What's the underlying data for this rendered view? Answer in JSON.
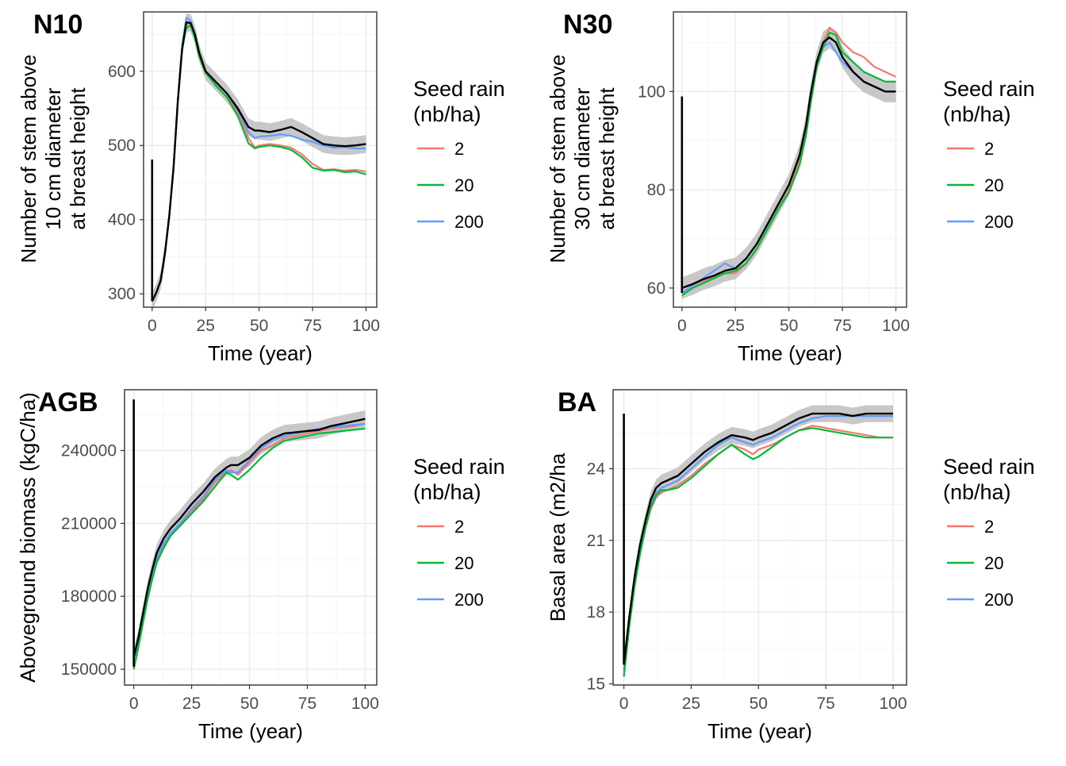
{
  "colors": {
    "s2": "#F8766D",
    "s20": "#00BA38",
    "s200": "#619CFF",
    "mean": "#000000",
    "band": "#BEBEBE"
  },
  "legend": {
    "title_line1": "Seed rain",
    "title_line2": "(nb/ha)",
    "labels": [
      "2",
      "20",
      "200"
    ]
  },
  "chart_data": [
    {
      "type": "line",
      "tag": "N10",
      "title": "N10",
      "ylabel_lines": [
        "Number of stem above",
        "10 cm diameter",
        "at breast height"
      ],
      "xlabel": "Time (year)",
      "xlim": [
        -4,
        105
      ],
      "ylim": [
        282,
        680
      ],
      "xticks": [
        0,
        25,
        50,
        75,
        100
      ],
      "yticks": [
        300,
        400,
        500,
        600
      ],
      "xtick_labels": [
        "0",
        "25",
        "50",
        "75",
        "100"
      ],
      "ytick_labels": [
        "300",
        "400",
        "500",
        "600"
      ],
      "spike": {
        "x": 0,
        "from": 290,
        "to": 481
      },
      "band_halfwidth": 12,
      "series": [
        {
          "name": "2",
          "key": "s2",
          "x": [
            0,
            2,
            4,
            6,
            8,
            10,
            12,
            14,
            16,
            18,
            20,
            22,
            25,
            30,
            35,
            40,
            45,
            48,
            50,
            55,
            60,
            65,
            70,
            75,
            80,
            85,
            90,
            95,
            100
          ],
          "y": [
            290,
            302,
            318,
            355,
            405,
            470,
            560,
            630,
            663,
            665,
            650,
            625,
            600,
            580,
            565,
            545,
            510,
            497,
            500,
            502,
            500,
            497,
            488,
            475,
            467,
            468,
            466,
            467,
            465
          ]
        },
        {
          "name": "20",
          "key": "s20",
          "x": [
            0,
            2,
            4,
            6,
            8,
            10,
            12,
            14,
            16,
            18,
            20,
            22,
            25,
            30,
            35,
            40,
            45,
            48,
            50,
            55,
            60,
            65,
            70,
            75,
            80,
            85,
            90,
            95,
            100
          ],
          "y": [
            290,
            302,
            318,
            355,
            405,
            470,
            560,
            630,
            658,
            662,
            645,
            620,
            598,
            580,
            565,
            540,
            503,
            496,
            498,
            500,
            498,
            494,
            484,
            470,
            466,
            467,
            464,
            465,
            461
          ]
        },
        {
          "name": "200",
          "key": "s200",
          "x": [
            0,
            2,
            4,
            6,
            8,
            10,
            12,
            14,
            16,
            18,
            20,
            22,
            25,
            30,
            35,
            40,
            45,
            48,
            50,
            55,
            60,
            65,
            70,
            75,
            80,
            85,
            90,
            95,
            100
          ],
          "y": [
            290,
            302,
            318,
            355,
            405,
            470,
            560,
            635,
            672,
            668,
            650,
            625,
            600,
            585,
            570,
            548,
            518,
            510,
            512,
            513,
            515,
            513,
            508,
            505,
            500,
            497,
            498,
            496,
            496
          ]
        },
        {
          "name": "mean",
          "key": "mean",
          "x": [
            0,
            2,
            4,
            6,
            8,
            10,
            12,
            14,
            16,
            18,
            20,
            22,
            25,
            30,
            35,
            40,
            45,
            48,
            50,
            55,
            60,
            65,
            70,
            75,
            80,
            85,
            90,
            95,
            100
          ],
          "y": [
            290,
            302,
            318,
            355,
            405,
            470,
            560,
            630,
            666,
            665,
            650,
            625,
            600,
            585,
            570,
            550,
            525,
            520,
            520,
            518,
            521,
            525,
            518,
            510,
            502,
            500,
            499,
            500,
            502
          ]
        }
      ]
    },
    {
      "type": "line",
      "tag": "N30",
      "title": "N30",
      "ylabel_lines": [
        "Number of stem above",
        "30 cm diameter",
        "at breast height"
      ],
      "xlabel": "Time (year)",
      "xlim": [
        -4,
        105
      ],
      "ylim": [
        56.1,
        116.2
      ],
      "xticks": [
        0,
        25,
        50,
        75,
        100
      ],
      "yticks": [
        60,
        80,
        100
      ],
      "xtick_labels": [
        "0",
        "25",
        "50",
        "75",
        "100"
      ],
      "ytick_labels": [
        "60",
        "80",
        "100"
      ],
      "spike": {
        "x": 0,
        "from": 59,
        "to": 99
      },
      "band_halfwidth": 2.2,
      "series": [
        {
          "name": "2",
          "key": "s2",
          "x": [
            0,
            5,
            10,
            15,
            20,
            25,
            30,
            35,
            40,
            45,
            50,
            55,
            58,
            60,
            63,
            66,
            69,
            72,
            75,
            80,
            85,
            90,
            95,
            100
          ],
          "y": [
            59,
            60.5,
            61.5,
            62,
            63,
            63,
            65,
            68,
            72,
            76,
            80,
            86,
            92,
            98,
            106,
            110,
            113,
            112,
            110,
            108,
            107,
            105,
            104,
            103
          ]
        },
        {
          "name": "20",
          "key": "s20",
          "x": [
            0,
            5,
            10,
            15,
            20,
            25,
            30,
            35,
            40,
            45,
            50,
            55,
            58,
            60,
            63,
            66,
            69,
            72,
            75,
            80,
            85,
            90,
            95,
            100
          ],
          "y": [
            58.5,
            60,
            61,
            62,
            63,
            63.5,
            65,
            68,
            72,
            76,
            79.5,
            85,
            91,
            97,
            105,
            109,
            112,
            111.5,
            108,
            106,
            104,
            103,
            102,
            102
          ]
        },
        {
          "name": "200",
          "key": "s200",
          "x": [
            0,
            5,
            10,
            15,
            20,
            25,
            30,
            35,
            40,
            45,
            50,
            55,
            58,
            60,
            63,
            66,
            69,
            72,
            75,
            80,
            85,
            90,
            95,
            100
          ],
          "y": [
            59,
            60.5,
            62,
            63.5,
            65,
            64,
            66,
            69,
            73,
            77,
            81,
            87,
            93,
            99,
            106,
            109,
            110,
            108,
            106,
            104,
            102,
            101,
            100,
            100
          ]
        },
        {
          "name": "mean",
          "key": "mean",
          "x": [
            0,
            5,
            10,
            15,
            20,
            25,
            30,
            35,
            40,
            45,
            50,
            55,
            58,
            60,
            63,
            66,
            69,
            72,
            75,
            80,
            85,
            90,
            95,
            100
          ],
          "y": [
            60,
            60.8,
            61.8,
            62.5,
            63.5,
            64,
            66,
            69,
            73,
            77,
            81,
            87,
            93,
            99,
            106,
            110,
            111,
            110,
            107,
            104,
            102,
            101,
            100,
            100
          ]
        }
      ]
    },
    {
      "type": "line",
      "tag": "AGB",
      "title": "AGB",
      "ylabel_lines": [
        "Aboveground biomass (kgC/ha)"
      ],
      "xlabel": "Time (year)",
      "xlim": [
        -4,
        105
      ],
      "ylim": [
        143500,
        265000
      ],
      "xticks": [
        0,
        25,
        50,
        75,
        100
      ],
      "yticks": [
        150000,
        180000,
        210000,
        240000
      ],
      "xtick_labels": [
        "0",
        "25",
        "50",
        "75",
        "100"
      ],
      "ytick_labels": [
        "150000",
        "180000",
        "210000",
        "240000"
      ],
      "spike": {
        "x": 0,
        "from": 151000,
        "to": 261000
      },
      "band_halfwidth": 3500,
      "series": [
        {
          "name": "2",
          "key": "s2",
          "x": [
            0,
            2,
            4,
            6,
            8,
            10,
            13,
            16,
            20,
            25,
            30,
            35,
            40,
            42,
            45,
            50,
            55,
            60,
            65,
            70,
            75,
            80,
            85,
            90,
            95,
            100
          ],
          "y": [
            151000,
            160000,
            170000,
            180000,
            188000,
            195000,
            201000,
            205000,
            209000,
            215000,
            220000,
            227000,
            231000,
            232000,
            230000,
            235000,
            240000,
            242000,
            245000,
            246000,
            247000,
            248000,
            249000,
            249500,
            250000,
            251000
          ]
        },
        {
          "name": "20",
          "key": "s20",
          "x": [
            0,
            2,
            4,
            6,
            8,
            10,
            13,
            16,
            20,
            25,
            30,
            35,
            40,
            42,
            45,
            50,
            55,
            60,
            65,
            70,
            75,
            80,
            85,
            90,
            95,
            100
          ],
          "y": [
            150000,
            159000,
            169000,
            179000,
            187000,
            194000,
            200000,
            205000,
            209000,
            214000,
            219000,
            225000,
            231000,
            230000,
            228000,
            232000,
            237000,
            241000,
            244000,
            245000,
            246000,
            247000,
            247500,
            248000,
            248500,
            249000
          ]
        },
        {
          "name": "200",
          "key": "s200",
          "x": [
            0,
            2,
            4,
            6,
            8,
            10,
            13,
            16,
            20,
            25,
            30,
            35,
            40,
            42,
            45,
            50,
            55,
            60,
            65,
            70,
            75,
            80,
            85,
            90,
            95,
            100
          ],
          "y": [
            152000,
            160000,
            170000,
            180000,
            188000,
            196000,
            202000,
            206000,
            210000,
            216000,
            221000,
            228000,
            232000,
            231000,
            231000,
            236000,
            241000,
            244000,
            246000,
            247000,
            248000,
            249000,
            249500,
            250000,
            250500,
            251000
          ]
        },
        {
          "name": "mean",
          "key": "mean",
          "x": [
            0,
            2,
            4,
            6,
            8,
            10,
            13,
            16,
            20,
            25,
            30,
            35,
            40,
            42,
            45,
            50,
            55,
            60,
            65,
            70,
            75,
            80,
            85,
            90,
            95,
            100
          ],
          "y": [
            155000,
            163000,
            173000,
            183000,
            191000,
            198000,
            204000,
            208000,
            212000,
            218000,
            223000,
            229000,
            233000,
            234000,
            234000,
            237000,
            242000,
            245000,
            247000,
            247500,
            248000,
            248500,
            250000,
            251000,
            252000,
            253000
          ]
        }
      ]
    },
    {
      "type": "line",
      "tag": "BA",
      "title": "BA",
      "ylabel_lines": [
        "Basal area (m2/ha"
      ],
      "xlabel": "Time (year)",
      "xlim": [
        -4,
        105
      ],
      "ylim": [
        14.95,
        27.3
      ],
      "xticks": [
        0,
        25,
        50,
        75,
        100
      ],
      "yticks": [
        15,
        18,
        21,
        24
      ],
      "xtick_labels": [
        "0",
        "25",
        "50",
        "75",
        "100"
      ],
      "ytick_labels": [
        "15",
        "18",
        "21",
        "24"
      ],
      "spike": {
        "x": 0,
        "from": 15.8,
        "to": 26.3
      },
      "band_halfwidth": 0.35,
      "series": [
        {
          "name": "2",
          "key": "s2",
          "x": [
            0,
            2,
            4,
            6,
            8,
            10,
            12,
            14,
            16,
            20,
            25,
            30,
            35,
            40,
            45,
            48,
            50,
            55,
            60,
            65,
            70,
            75,
            80,
            85,
            90,
            95,
            100
          ],
          "y": [
            15.5,
            17.5,
            19.2,
            20.5,
            21.5,
            22.3,
            22.8,
            23.0,
            23.1,
            23.3,
            23.7,
            24.2,
            24.6,
            25.0,
            24.8,
            24.6,
            24.8,
            25.0,
            25.3,
            25.6,
            25.8,
            25.7,
            25.6,
            25.5,
            25.4,
            25.3,
            25.3
          ]
        },
        {
          "name": "20",
          "key": "s20",
          "x": [
            0,
            2,
            4,
            6,
            8,
            10,
            12,
            14,
            16,
            20,
            25,
            30,
            35,
            40,
            45,
            48,
            50,
            55,
            60,
            65,
            70,
            75,
            80,
            85,
            90,
            95,
            100
          ],
          "y": [
            15.3,
            17.4,
            19.1,
            20.4,
            21.5,
            22.4,
            22.9,
            23.1,
            23.1,
            23.2,
            23.6,
            24.1,
            24.6,
            25.0,
            24.6,
            24.4,
            24.5,
            24.9,
            25.3,
            25.6,
            25.7,
            25.6,
            25.5,
            25.4,
            25.3,
            25.3,
            25.3
          ]
        },
        {
          "name": "200",
          "key": "s200",
          "x": [
            0,
            2,
            4,
            6,
            8,
            10,
            12,
            14,
            16,
            20,
            25,
            30,
            35,
            40,
            45,
            48,
            50,
            55,
            60,
            65,
            70,
            75,
            80,
            85,
            90,
            95,
            100
          ],
          "y": [
            15.6,
            17.6,
            19.3,
            20.6,
            21.6,
            22.5,
            23.0,
            23.2,
            23.3,
            23.5,
            24.0,
            24.5,
            25.0,
            25.3,
            25.1,
            25.0,
            25.1,
            25.3,
            25.6,
            25.9,
            26.1,
            26.2,
            26.2,
            26.2,
            26.2,
            26.2,
            26.2
          ]
        },
        {
          "name": "mean",
          "key": "mean",
          "x": [
            0,
            2,
            4,
            6,
            8,
            10,
            12,
            14,
            16,
            20,
            25,
            30,
            35,
            40,
            45,
            48,
            50,
            55,
            60,
            65,
            70,
            75,
            80,
            85,
            90,
            95,
            100
          ],
          "y": [
            15.8,
            17.8,
            19.5,
            20.8,
            21.8,
            22.7,
            23.2,
            23.4,
            23.5,
            23.7,
            24.2,
            24.7,
            25.1,
            25.4,
            25.3,
            25.2,
            25.3,
            25.5,
            25.8,
            26.1,
            26.3,
            26.3,
            26.3,
            26.2,
            26.3,
            26.3,
            26.3
          ]
        }
      ]
    }
  ]
}
